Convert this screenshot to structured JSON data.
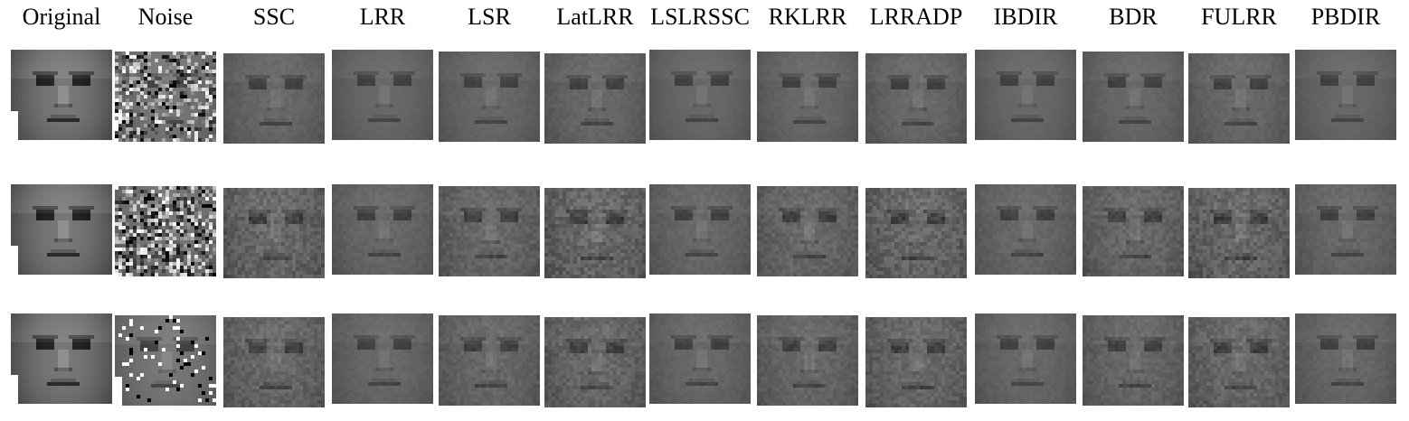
{
  "figure": {
    "columns": [
      {
        "label": "Original",
        "kind": "clean"
      },
      {
        "label": "Noise",
        "kind": "noise"
      },
      {
        "label": "SSC",
        "kind": "recon"
      },
      {
        "label": "LRR",
        "kind": "recon"
      },
      {
        "label": "LSR",
        "kind": "recon"
      },
      {
        "label": "LatLRR",
        "kind": "recon"
      },
      {
        "label": "LSLRSSC",
        "kind": "recon"
      },
      {
        "label": "RKLRR",
        "kind": "recon"
      },
      {
        "label": "LRRADP",
        "kind": "recon"
      },
      {
        "label": "IBDIR",
        "kind": "recon"
      },
      {
        "label": "BDR",
        "kind": "recon"
      },
      {
        "label": "FULRR",
        "kind": "recon"
      },
      {
        "label": "PBDIR",
        "kind": "recon"
      }
    ],
    "rows": [
      {
        "noise_type": "random-pixel",
        "tint": "#7a7a7a"
      },
      {
        "noise_type": "random-pixel-heavy",
        "tint": "#6e6e6e"
      },
      {
        "noise_type": "salt-pepper",
        "tint": "#5e5e5e"
      }
    ],
    "icon": "face-image"
  }
}
